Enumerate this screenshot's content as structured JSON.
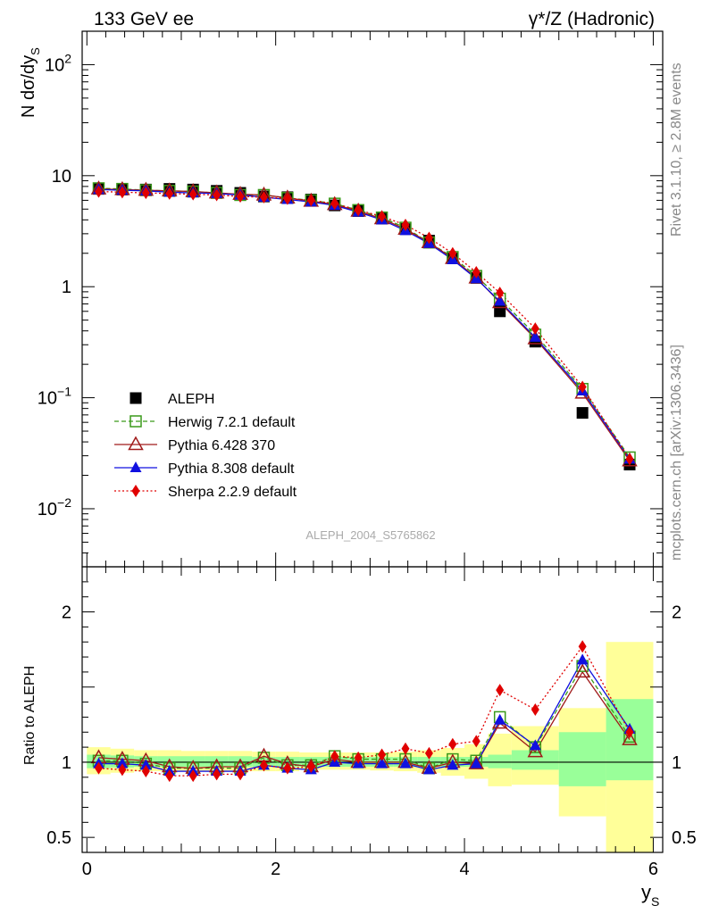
{
  "header": {
    "left": "133 GeV ee",
    "right": "γ*/Z (Hadronic)"
  },
  "side": {
    "rivet": "Rivet 3.1.10, ≥ 2.8M events",
    "mcplots": "mcplots.cern.ch [arXiv:1306.3436]"
  },
  "watermark": "ALEPH_2004_S5765862",
  "chart_data": [
    {
      "type": "scatter",
      "panel": "main",
      "ylabel": "N dσ/dy_S",
      "yscale": "log",
      "ylim": [
        0.003,
        200
      ],
      "xlim": [
        -0.05,
        6.1
      ],
      "yticks": [
        {
          "v": 100,
          "base": "10",
          "exp": "2"
        },
        {
          "v": 10,
          "base": "10",
          "exp": ""
        },
        {
          "v": 1,
          "base": "1",
          "exp": ""
        },
        {
          "v": 0.1,
          "base": "10",
          "exp": "−1"
        },
        {
          "v": 0.01,
          "base": "10",
          "exp": "−2"
        }
      ],
      "x": [
        0.125,
        0.375,
        0.625,
        0.875,
        1.125,
        1.375,
        1.625,
        1.875,
        2.125,
        2.375,
        2.625,
        2.875,
        3.125,
        3.375,
        3.625,
        3.875,
        4.125,
        4.375,
        4.75,
        5.25,
        5.75
      ],
      "series": [
        {
          "name": "ALEPH",
          "color": "#000000",
          "marker": "square-filled",
          "line": "none",
          "values": [
            7.6,
            7.5,
            7.5,
            7.6,
            7.5,
            7.3,
            7.0,
            6.5,
            6.4,
            6.1,
            5.4,
            4.8,
            4.1,
            3.3,
            2.6,
            1.8,
            1.2,
            0.6,
            0.32,
            0.073,
            0.025
          ]
        },
        {
          "name": "Herwig 7.2.1 default",
          "color": "#3a9a1a",
          "marker": "square-open",
          "line": "dashed",
          "values": [
            7.7,
            7.6,
            7.4,
            7.3,
            7.2,
            7.0,
            6.7,
            6.7,
            6.3,
            6.0,
            5.6,
            4.9,
            4.2,
            3.4,
            2.5,
            1.85,
            1.25,
            0.78,
            0.37,
            0.12,
            0.029
          ]
        },
        {
          "name": "Pythia 6.428 370",
          "color": "#a01a1a",
          "marker": "triangle-open",
          "line": "solid",
          "values": [
            7.6,
            7.5,
            7.4,
            7.3,
            7.2,
            7.0,
            6.8,
            6.7,
            6.3,
            5.9,
            5.5,
            4.8,
            4.1,
            3.3,
            2.5,
            1.8,
            1.2,
            0.72,
            0.34,
            0.11,
            0.027
          ]
        },
        {
          "name": "Pythia 8.308 default",
          "color": "#1010e0",
          "marker": "triangle-filled",
          "line": "solid",
          "values": [
            7.5,
            7.4,
            7.3,
            7.1,
            7.0,
            6.9,
            6.7,
            6.4,
            6.1,
            5.8,
            5.4,
            4.7,
            4.0,
            3.2,
            2.45,
            1.75,
            1.18,
            0.74,
            0.35,
            0.115,
            0.028
          ]
        },
        {
          "name": "Sherpa 2.2.9 default",
          "color": "#e00000",
          "marker": "diamond-filled",
          "line": "dotted",
          "values": [
            7.2,
            7.1,
            7.0,
            6.9,
            6.8,
            6.7,
            6.5,
            6.4,
            6.2,
            6.0,
            5.6,
            4.9,
            4.3,
            3.6,
            2.75,
            2.0,
            1.35,
            0.88,
            0.42,
            0.125,
            0.028
          ]
        }
      ]
    },
    {
      "type": "scatter",
      "panel": "ratio",
      "xlabel": "y_S",
      "ylabel": "Ratio to ALEPH",
      "ylim": [
        0.4,
        2.3
      ],
      "xlim": [
        -0.05,
        6.1
      ],
      "xticks": [
        "0",
        "2",
        "4",
        "6"
      ],
      "yticks": [
        "0.5",
        "1",
        "2"
      ],
      "bands": {
        "edges": [
          0.0,
          0.25,
          0.5,
          0.75,
          1.0,
          1.25,
          1.5,
          1.75,
          2.0,
          2.25,
          2.5,
          2.75,
          3.0,
          3.25,
          3.5,
          3.75,
          4.0,
          4.25,
          4.5,
          5.0,
          5.5,
          6.0
        ],
        "stat_color": "#99ff99",
        "total_color": "#ffff99",
        "stat": [
          [
            0.96,
            1.05
          ],
          [
            0.965,
            1.045
          ],
          [
            0.97,
            1.04
          ],
          [
            0.97,
            1.04
          ],
          [
            0.97,
            1.04
          ],
          [
            0.97,
            1.04
          ],
          [
            0.97,
            1.04
          ],
          [
            0.97,
            1.035
          ],
          [
            0.97,
            1.035
          ],
          [
            0.97,
            1.035
          ],
          [
            0.97,
            1.035
          ],
          [
            0.97,
            1.035
          ],
          [
            0.97,
            1.035
          ],
          [
            0.97,
            1.035
          ],
          [
            0.97,
            1.035
          ],
          [
            0.97,
            1.035
          ],
          [
            0.97,
            1.035
          ],
          [
            0.96,
            1.05
          ],
          [
            0.95,
            1.08
          ],
          [
            0.84,
            1.2
          ],
          [
            0.88,
            1.42
          ]
        ],
        "total": [
          [
            0.92,
            1.1
          ],
          [
            0.93,
            1.09
          ],
          [
            0.94,
            1.08
          ],
          [
            0.94,
            1.08
          ],
          [
            0.94,
            1.075
          ],
          [
            0.94,
            1.075
          ],
          [
            0.94,
            1.075
          ],
          [
            0.94,
            1.07
          ],
          [
            0.94,
            1.07
          ],
          [
            0.95,
            1.065
          ],
          [
            0.95,
            1.065
          ],
          [
            0.95,
            1.065
          ],
          [
            0.945,
            1.065
          ],
          [
            0.94,
            1.07
          ],
          [
            0.93,
            1.08
          ],
          [
            0.91,
            1.095
          ],
          [
            0.89,
            1.12
          ],
          [
            0.84,
            1.19
          ],
          [
            0.85,
            1.24
          ],
          [
            0.64,
            1.36
          ],
          [
            0.35,
            1.8
          ]
        ]
      },
      "x": [
        0.125,
        0.375,
        0.625,
        0.875,
        1.125,
        1.375,
        1.625,
        1.875,
        2.125,
        2.375,
        2.625,
        2.875,
        3.125,
        3.375,
        3.625,
        3.875,
        4.125,
        4.375,
        4.75,
        5.25,
        5.75
      ],
      "series": [
        {
          "name": "Herwig 7.2.1 default",
          "values": [
            1.01,
            1.01,
            0.99,
            0.96,
            0.96,
            0.96,
            0.96,
            1.03,
            0.98,
            0.98,
            1.04,
            1.02,
            1.02,
            1.02,
            0.96,
            1.02,
            1.01,
            1.3,
            1.1,
            1.64,
            1.17
          ]
        },
        {
          "name": "Pythia 6.428 370",
          "values": [
            1.03,
            1.02,
            1.01,
            0.97,
            0.96,
            0.97,
            0.97,
            1.04,
            0.99,
            0.97,
            1.02,
            1.0,
            1.0,
            1.0,
            0.96,
            1.0,
            0.99,
            1.26,
            1.07,
            1.6,
            1.15
          ]
        },
        {
          "name": "Pythia 8.308 default",
          "values": [
            0.99,
            0.99,
            0.98,
            0.94,
            0.94,
            0.94,
            0.94,
            0.98,
            0.96,
            0.95,
            1.0,
            0.99,
            0.99,
            0.99,
            0.95,
            0.98,
            0.99,
            1.28,
            1.11,
            1.68,
            1.22
          ]
        },
        {
          "name": "Sherpa 2.2.9 default",
          "values": [
            0.96,
            0.95,
            0.94,
            0.91,
            0.91,
            0.92,
            0.92,
            0.98,
            0.96,
            0.97,
            1.04,
            1.03,
            1.05,
            1.09,
            1.06,
            1.12,
            1.14,
            1.48,
            1.35,
            1.77,
            1.2
          ]
        }
      ]
    }
  ]
}
